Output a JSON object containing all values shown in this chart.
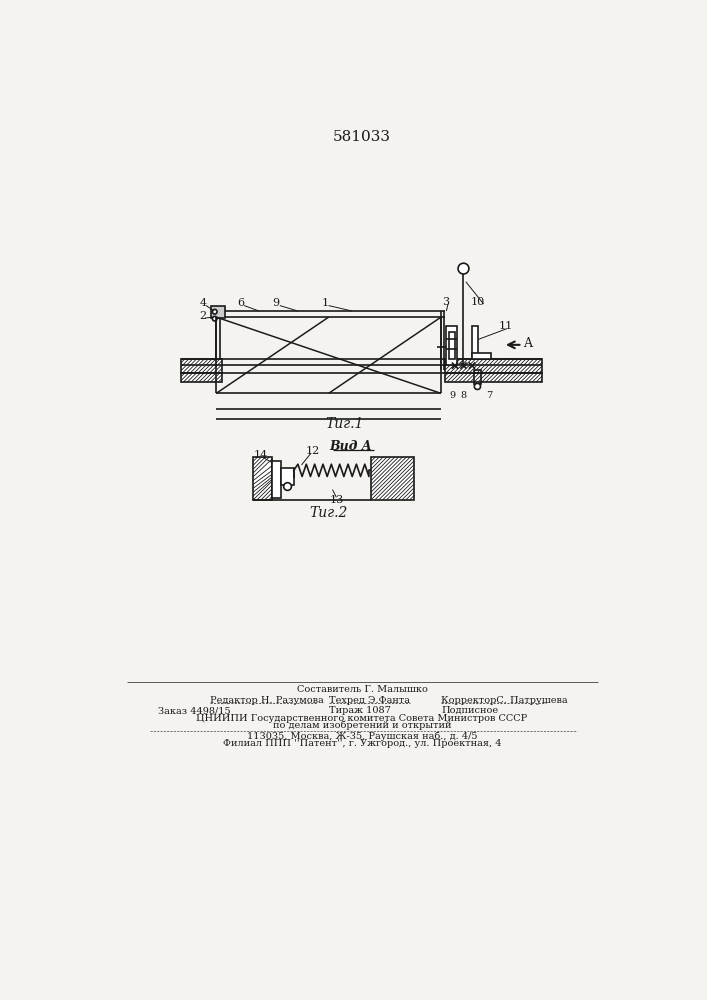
{
  "patent_number": "581033",
  "fig1_label": "Τиг.1",
  "fig2_label": "Τиг.2",
  "vid_a_label": "Вид A",
  "arrow_a_label": "A",
  "bg_color": "#f5f3ef",
  "line_color": "#1a1a1a"
}
